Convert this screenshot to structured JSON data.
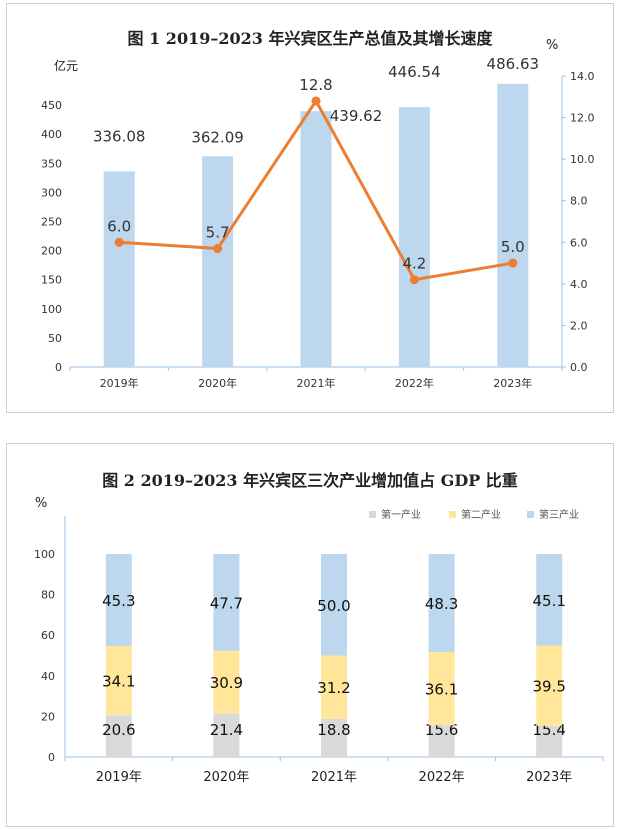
{
  "chart_data": [
    {
      "type": "bar",
      "title": "图 1    2019–2023 年兴宾区生产总值及其增长速度",
      "categories": [
        "2019年",
        "2020年",
        "2021年",
        "2022年",
        "2023年"
      ],
      "y_left_label": "亿元",
      "y_right_label": "%",
      "y_left_lim": [
        0,
        500
      ],
      "y_left_ticks": [
        0,
        50,
        100,
        150,
        200,
        250,
        300,
        350,
        400,
        450
      ],
      "y_right_lim": [
        0,
        14
      ],
      "y_right_ticks": [
        "0.0",
        "2.0",
        "4.0",
        "6.0",
        "8.0",
        "10.0",
        "12.0",
        "14.0"
      ],
      "series": [
        {
          "type": "bar",
          "axis": "left",
          "values": [
            336.08,
            362.09,
            439.62,
            446.54,
            486.63
          ],
          "labels": [
            "336.08",
            "362.09",
            "439.62",
            "446.54",
            "486.63"
          ],
          "color": "#bdd7ee"
        },
        {
          "type": "line",
          "axis": "right",
          "values": [
            6.0,
            5.7,
            12.8,
            4.2,
            5.0
          ],
          "labels": [
            "6.0",
            "5.7",
            "12.8",
            "4.2",
            "5.0"
          ],
          "color": "#ed7d31"
        }
      ],
      "grid": false
    },
    {
      "type": "bar",
      "stacked": true,
      "title": "图 2    2019–2023 年兴宾区三次产业增加值占 GDP 比重",
      "categories": [
        "2019年",
        "2020年",
        "2021年",
        "2022年",
        "2023年"
      ],
      "ylabel": "%",
      "ylim": [
        0,
        100
      ],
      "y_ticks": [
        0,
        20,
        40,
        60,
        80,
        100
      ],
      "legend_position": "top-right",
      "series": [
        {
          "name": "第一产业",
          "values": [
            20.6,
            21.4,
            18.8,
            15.6,
            15.4
          ],
          "labels": [
            "20.6",
            "21.4",
            "18.8",
            "15.6",
            "15.4"
          ],
          "color": "#d9d9d9"
        },
        {
          "name": "第二产业",
          "values": [
            34.1,
            30.9,
            31.2,
            36.1,
            39.5
          ],
          "labels": [
            "34.1",
            "30.9",
            "31.2",
            "36.1",
            "39.5"
          ],
          "color": "#ffe699"
        },
        {
          "name": "第三产业",
          "values": [
            45.3,
            47.7,
            50.0,
            48.3,
            45.1
          ],
          "labels": [
            "45.3",
            "47.7",
            "50.0",
            "48.3",
            "45.1"
          ],
          "color": "#bdd7ee"
        }
      ]
    }
  ]
}
